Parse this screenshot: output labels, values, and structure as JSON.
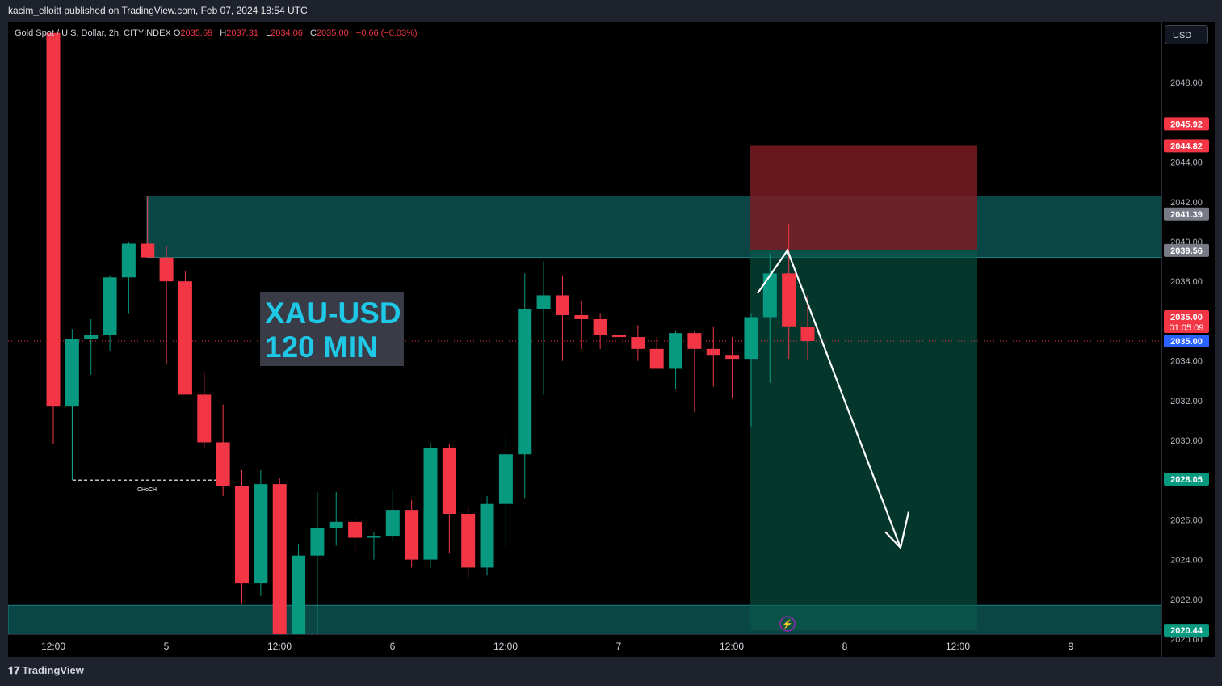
{
  "publisher": "kacim_elloitt published on TradingView.com, Feb 07, 2024 18:54 UTC",
  "legend": {
    "symbol": "Gold Spot / U.S. Dollar, 2h, CITYINDEX",
    "o_label": "O",
    "o": "2035.69",
    "h_label": "H",
    "h": "2037.31",
    "l_label": "L",
    "l": "2034.06",
    "c_label": "C",
    "c": "2035.00",
    "change": "−0.66 (−0.03%)"
  },
  "currency_button": "USD",
  "branding": "TradingView",
  "overlay_text": [
    "XAU-USD",
    "120 MIN"
  ],
  "choch_label": "CHoCH",
  "colors": {
    "up": "#089981",
    "down": "#f23645",
    "zone": "#0f5e5e",
    "stop": "#7a1c22",
    "target": "#075a4a",
    "price_label": "#2962ff"
  },
  "chart_data": {
    "type": "candlestick",
    "title": "Gold Spot / U.S. Dollar, 2h, CITYINDEX",
    "ylim": [
      2019,
      2050
    ],
    "y_ticks": [
      "2048.00",
      "2044.00",
      "2042.00",
      "2040.00",
      "2038.00",
      "2034.00",
      "2032.00",
      "2030.00",
      "2026.00",
      "2024.00",
      "2022.00",
      "2020.00"
    ],
    "x_ticks": [
      "12:00",
      "5",
      "12:00",
      "6",
      "12:00",
      "7",
      "12:00",
      "8",
      "12:00",
      "9"
    ],
    "candles": [
      {
        "o": 2050.5,
        "h": 2050.5,
        "l": 2029.8,
        "c": 2031.7
      },
      {
        "o": 2031.7,
        "h": 2035.6,
        "l": 2028.0,
        "c": 2035.1
      },
      {
        "o": 2035.1,
        "h": 2036.1,
        "l": 2033.3,
        "c": 2035.3
      },
      {
        "o": 2035.3,
        "h": 2038.3,
        "l": 2034.5,
        "c": 2038.2
      },
      {
        "o": 2038.2,
        "h": 2040.0,
        "l": 2036.4,
        "c": 2039.9
      },
      {
        "o": 2039.9,
        "h": 2042.3,
        "l": 2039.4,
        "c": 2039.2
      },
      {
        "o": 2039.2,
        "h": 2039.8,
        "l": 2033.8,
        "c": 2038.0
      },
      {
        "o": 2038.0,
        "h": 2038.5,
        "l": 2032.4,
        "c": 2032.3
      },
      {
        "o": 2032.3,
        "h": 2033.4,
        "l": 2029.6,
        "c": 2029.9
      },
      {
        "o": 2029.9,
        "h": 2031.8,
        "l": 2027.2,
        "c": 2027.7
      },
      {
        "o": 2027.7,
        "h": 2028.5,
        "l": 2021.8,
        "c": 2022.8
      },
      {
        "o": 2022.8,
        "h": 2028.5,
        "l": 2022.2,
        "c": 2027.8
      },
      {
        "o": 2027.8,
        "h": 2028.1,
        "l": 2019.2,
        "c": 2019.2
      },
      {
        "o": 2019.2,
        "h": 2024.8,
        "l": 2019.2,
        "c": 2024.2
      },
      {
        "o": 2024.2,
        "h": 2027.4,
        "l": 2019.2,
        "c": 2025.6
      },
      {
        "o": 2025.6,
        "h": 2027.4,
        "l": 2024.7,
        "c": 2025.9
      },
      {
        "o": 2025.9,
        "h": 2026.2,
        "l": 2024.4,
        "c": 2025.1
      },
      {
        "o": 2025.1,
        "h": 2025.4,
        "l": 2024.0,
        "c": 2025.2
      },
      {
        "o": 2025.2,
        "h": 2027.5,
        "l": 2024.9,
        "c": 2026.5
      },
      {
        "o": 2026.5,
        "h": 2027.0,
        "l": 2023.6,
        "c": 2024.0
      },
      {
        "o": 2024.0,
        "h": 2029.9,
        "l": 2023.6,
        "c": 2029.6
      },
      {
        "o": 2029.6,
        "h": 2029.8,
        "l": 2024.3,
        "c": 2026.3
      },
      {
        "o": 2026.3,
        "h": 2026.6,
        "l": 2023.1,
        "c": 2023.6
      },
      {
        "o": 2023.6,
        "h": 2027.2,
        "l": 2023.2,
        "c": 2026.8
      },
      {
        "o": 2026.8,
        "h": 2030.3,
        "l": 2024.6,
        "c": 2029.3
      },
      {
        "o": 2029.3,
        "h": 2038.4,
        "l": 2027.1,
        "c": 2036.6
      },
      {
        "o": 2036.6,
        "h": 2039.0,
        "l": 2032.3,
        "c": 2037.3
      },
      {
        "o": 2037.3,
        "h": 2038.3,
        "l": 2034.0,
        "c": 2036.3
      },
      {
        "o": 2036.3,
        "h": 2037.0,
        "l": 2034.6,
        "c": 2036.1
      },
      {
        "o": 2036.1,
        "h": 2036.4,
        "l": 2034.6,
        "c": 2035.3
      },
      {
        "o": 2035.3,
        "h": 2035.8,
        "l": 2034.3,
        "c": 2035.2
      },
      {
        "o": 2035.2,
        "h": 2035.8,
        "l": 2034.0,
        "c": 2034.6
      },
      {
        "o": 2034.6,
        "h": 2035.2,
        "l": 2033.6,
        "c": 2033.6
      },
      {
        "o": 2033.6,
        "h": 2035.5,
        "l": 2032.6,
        "c": 2035.4
      },
      {
        "o": 2035.4,
        "h": 2035.5,
        "l": 2031.4,
        "c": 2034.6
      },
      {
        "o": 2034.6,
        "h": 2035.7,
        "l": 2032.7,
        "c": 2034.3
      },
      {
        "o": 2034.3,
        "h": 2035.2,
        "l": 2032.1,
        "c": 2034.1
      },
      {
        "o": 2034.1,
        "h": 2036.4,
        "l": 2030.7,
        "c": 2036.2
      },
      {
        "o": 2036.2,
        "h": 2039.4,
        "l": 2032.9,
        "c": 2038.4
      },
      {
        "o": 2038.4,
        "h": 2040.9,
        "l": 2034.1,
        "c": 2035.7
      },
      {
        "o": 2035.69,
        "h": 2037.31,
        "l": 2034.06,
        "c": 2035.0
      }
    ],
    "zones": [
      {
        "from": 2039.2,
        "to": 2042.3
      },
      {
        "from": 2019.0,
        "to": 2021.7
      }
    ],
    "short_position": {
      "entry": 2039.56,
      "stop": 2044.82,
      "target": 2020.44
    },
    "price_labels": [
      {
        "value": "2045.92",
        "kind": "down"
      },
      {
        "value": "2044.82",
        "kind": "down"
      },
      {
        "value": "2041.39",
        "kind": "gray"
      },
      {
        "value": "2039.56",
        "kind": "gray"
      },
      {
        "value": "2035.00",
        "kind": "down",
        "extra": "01:05:09"
      },
      {
        "value": "2035.00",
        "kind": "blue"
      },
      {
        "value": "2028.05",
        "kind": "target"
      },
      {
        "value": "2020.44",
        "kind": "target"
      }
    ],
    "choch_level": 2028.0
  }
}
